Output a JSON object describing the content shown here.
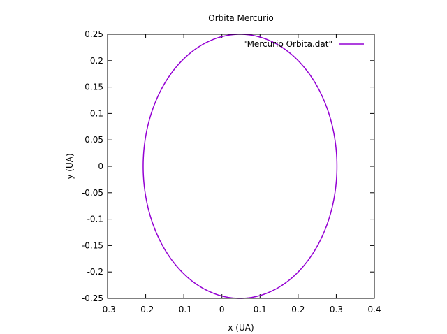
{
  "chart_data": {
    "type": "line",
    "title": "Orbita Mercurio",
    "xlabel": "x (UA)",
    "ylabel": "y (UA)",
    "xlim": [
      -0.3,
      0.4
    ],
    "ylim": [
      -0.25,
      0.25
    ],
    "x_ticks": [
      -0.3,
      -0.2,
      -0.1,
      0,
      0.1,
      0.2,
      0.3,
      0.4
    ],
    "x_tick_labels": [
      "-0.3",
      "-0.2",
      "-0.1",
      "0",
      "0.1",
      "0.2",
      "0.3",
      "0.4"
    ],
    "y_ticks": [
      -0.25,
      -0.2,
      -0.15,
      -0.1,
      -0.05,
      0,
      0.05,
      0.1,
      0.15,
      0.2,
      0.25
    ],
    "y_tick_labels": [
      "-0.25",
      "-0.2",
      "-0.15",
      "-0.1",
      "-0.05",
      "0",
      "0.05",
      "0.1",
      "0.15",
      "0.2",
      "0.25"
    ],
    "grid": false,
    "legend_position": "top-right",
    "series": [
      {
        "name": "\"Mercurio Orbita.dat\"",
        "color": "#9400d3",
        "shape": "ellipse",
        "center": [
          0.0476,
          0
        ],
        "semi_major_x": 0.2542,
        "semi_minor_y": 0.25,
        "points": [
          [
            0.3018,
            0.0
          ],
          [
            0.2893,
            0.0769
          ],
          [
            0.2531,
            0.1464
          ],
          [
            0.1971,
            0.2017
          ],
          [
            0.1262,
            0.2377
          ],
          [
            0.0476,
            0.25
          ],
          [
            -0.031,
            0.2377
          ],
          [
            -0.1018,
            0.2017
          ],
          [
            -0.1579,
            0.1464
          ],
          [
            -0.194,
            0.0769
          ],
          [
            -0.2066,
            0.0
          ],
          [
            -0.194,
            -0.0769
          ],
          [
            -0.1579,
            -0.1464
          ],
          [
            -0.1018,
            -0.2017
          ],
          [
            -0.031,
            -0.2377
          ],
          [
            0.0476,
            -0.25
          ],
          [
            0.1262,
            -0.2377
          ],
          [
            0.1971,
            -0.2017
          ],
          [
            0.2531,
            -0.1464
          ],
          [
            0.2893,
            -0.0769
          ],
          [
            0.3018,
            0.0
          ]
        ]
      }
    ]
  }
}
